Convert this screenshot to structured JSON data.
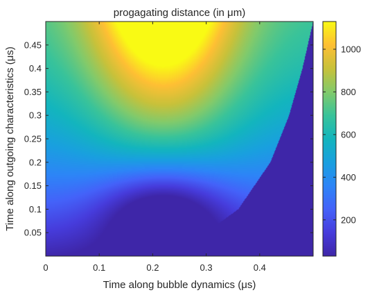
{
  "chart_data": {
    "type": "heatmap",
    "title": "progagating distance (in μm)",
    "xlabel": "Time along bubble dynamics (μs)",
    "ylabel": "Time along outgoing characteristics (μs)",
    "xlim": [
      0,
      0.5
    ],
    "ylim": [
      0,
      0.5
    ],
    "x_ticks": [
      0,
      0.1,
      0.2,
      0.3,
      0.4
    ],
    "x_tick_labels": [
      "0",
      "0.1",
      "0.2",
      "0.3",
      "0.4"
    ],
    "y_ticks": [
      0.05,
      0.1,
      0.15,
      0.2,
      0.25,
      0.3,
      0.35,
      0.4,
      0.45
    ],
    "y_tick_labels": [
      "0.05",
      "0.1",
      "0.15",
      "0.2",
      "0.25",
      "0.3",
      "0.35",
      "0.4",
      "0.45"
    ],
    "colorbar": {
      "range": [
        30,
        1130
      ],
      "ticks": [
        200,
        400,
        600,
        800,
        1000
      ],
      "tick_labels": [
        "200",
        "400",
        "600",
        "800",
        "1000"
      ],
      "colormap": "parula"
    },
    "value_summary": {
      "peak_value": 1130,
      "peak_location": {
        "x": 0.21,
        "y": 0.5
      },
      "invalid_region_value": 30,
      "invalid_region_boundary": [
        {
          "y": 0.0,
          "x": 0.15
        },
        {
          "y": 0.05,
          "x": 0.3
        },
        {
          "y": 0.1,
          "x": 0.36
        },
        {
          "y": 0.2,
          "x": 0.42
        },
        {
          "y": 0.3,
          "x": 0.455
        },
        {
          "y": 0.4,
          "x": 0.48
        },
        {
          "y": 0.5,
          "x": 0.5
        }
      ]
    },
    "grid": false,
    "legend": "colorbar-right"
  },
  "colors": {
    "axis": "#262626",
    "background": "#ffffff"
  }
}
